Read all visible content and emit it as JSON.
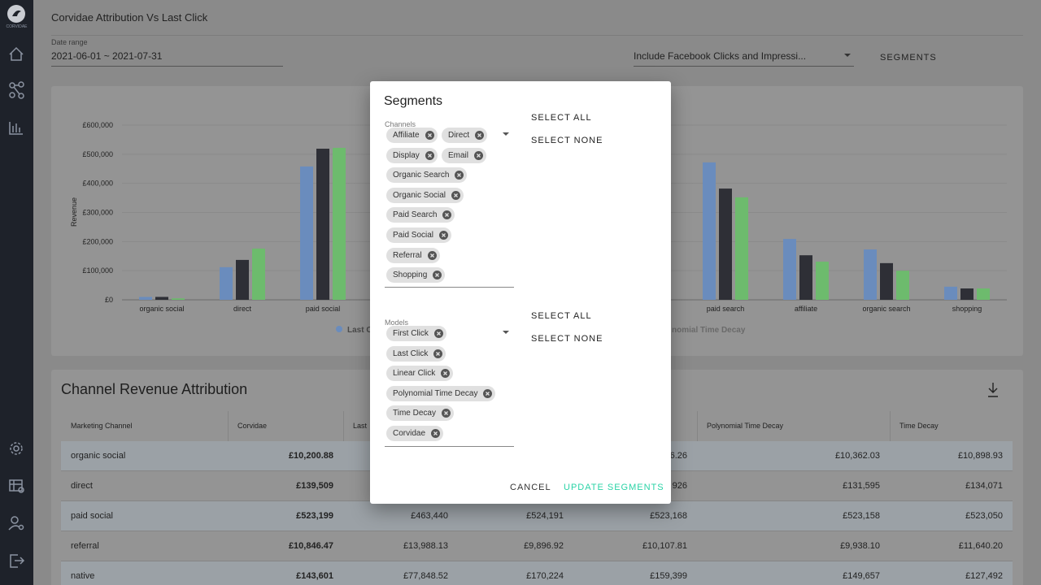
{
  "sidebar": {
    "logo_text": "CORVIDAE"
  },
  "header": {
    "title": "Corvidae Attribution Vs Last Click"
  },
  "filters": {
    "date_range_label": "Date range",
    "date_range_value": "2021-06-01 ~ 2021-07-31",
    "facebook_select": "Include Facebook Clicks and Impressi...",
    "segments_button": "SEGMENTS"
  },
  "chart_data": {
    "type": "bar",
    "y_label": "Revenue",
    "categories": [
      "organic social",
      "direct",
      "paid social",
      null,
      null,
      null,
      null,
      "paid search",
      "affiliate",
      "organic search",
      "shopping"
    ],
    "series": [
      {
        "color": "#6a8cbd",
        "values": [
          10000,
          112000,
          458000,
          null,
          null,
          null,
          null,
          472000,
          209000,
          173000,
          45000
        ]
      },
      {
        "color": "#2e2f36",
        "values": [
          10000,
          137000,
          519000,
          null,
          null,
          null,
          null,
          382000,
          153000,
          126000,
          39000
        ]
      },
      {
        "color": "#6dbb6d",
        "values": [
          5000,
          176000,
          522000,
          null,
          null,
          null,
          null,
          352000,
          131000,
          100000,
          39000
        ]
      }
    ],
    "legend": [
      "Last C",
      "nomial Time Decay"
    ],
    "ylim": [
      0,
      600000
    ],
    "yticks": [
      {
        "value": 0,
        "label": "£0"
      },
      {
        "value": 100000,
        "label": "£100,000"
      },
      {
        "value": 200000,
        "label": "£200,000"
      },
      {
        "value": 300000,
        "label": "£300,000"
      },
      {
        "value": 400000,
        "label": "£400,000"
      },
      {
        "value": 500000,
        "label": "£500,000"
      },
      {
        "value": 600000,
        "label": "£600,000"
      }
    ],
    "grid": true
  },
  "table": {
    "title": "Channel Revenue Attribution",
    "columns": [
      "Marketing Channel",
      "Corvidae",
      "Last",
      null,
      null,
      "Polynomial Time Decay",
      "Time Decay"
    ],
    "rows": [
      [
        "organic social",
        "£10,200.88",
        null,
        null,
        "6.26",
        "£10,362.03",
        "£10,898.93"
      ],
      [
        "direct",
        "£139,509",
        null,
        null,
        "926",
        "£131,595",
        "£134,071"
      ],
      [
        "paid social",
        "£523,199",
        "£463,440",
        "£524,191",
        "£523,168",
        "£523,158",
        "£523,050"
      ],
      [
        "referral",
        "£10,846.47",
        "£13,988.13",
        "£9,896.92",
        "£10,107.81",
        "£9,938.10",
        "£11,640.20"
      ],
      [
        "native",
        "£143,601",
        "£77,848.52",
        "£170,224",
        "£159,399",
        "£149,657",
        "£127,492"
      ]
    ]
  },
  "modal": {
    "title": "Segments",
    "channels": {
      "label": "Channels",
      "chips": [
        "Affiliate",
        "Direct",
        "Display",
        "Email",
        "Organic Search",
        "Organic Social",
        "Paid Search",
        "Paid Social",
        "Referral",
        "Shopping"
      ],
      "select_all": "SELECT ALL",
      "select_none": "SELECT NONE"
    },
    "models": {
      "label": "Models",
      "chips": [
        "First Click",
        "Last Click",
        "Linear Click",
        "Polynomial Time Decay",
        "Time Decay",
        "Corvidae"
      ],
      "select_all": "SELECT ALL",
      "select_none": "SELECT NONE"
    },
    "cancel": "CANCEL",
    "update": "UPDATE SEGMENTS"
  }
}
